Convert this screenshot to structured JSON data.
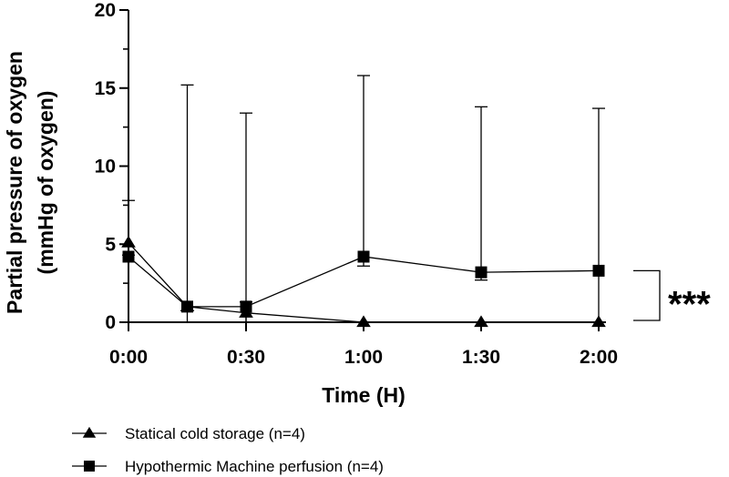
{
  "chart_data": {
    "type": "line",
    "title": "",
    "xlabel": "Time (H)",
    "ylabel": "Partial pressure  of oxygen",
    "ylabel_units": "(mmHg of oxygen)",
    "xlim": [
      0,
      120
    ],
    "ylim": [
      0,
      20
    ],
    "x_ticks": [
      {
        "value": 0,
        "label": "0:00"
      },
      {
        "value": 30,
        "label": "0:30"
      },
      {
        "value": 60,
        "label": "1:00"
      },
      {
        "value": 90,
        "label": "1:30"
      },
      {
        "value": 120,
        "label": "2:00"
      }
    ],
    "y_ticks": [
      {
        "value": 0,
        "label": "0"
      },
      {
        "value": 5,
        "label": "5"
      },
      {
        "value": 10,
        "label": "10"
      },
      {
        "value": 15,
        "label": "15"
      },
      {
        "value": 20,
        "label": "20"
      }
    ],
    "grid": false,
    "series": [
      {
        "name": "Statical cold storage (n=4)",
        "marker": "triangle",
        "color": "#000000",
        "x": [
          0,
          15,
          30,
          60,
          90,
          120
        ],
        "y": [
          5.1,
          1.0,
          0.6,
          0.0,
          0.0,
          0.0
        ],
        "err_low": [
          4.3,
          0.0,
          0.0,
          0.0,
          0.0,
          0.0
        ],
        "err_high": [
          7.8,
          0.0,
          1.3,
          0.0,
          0.0,
          0.0
        ]
      },
      {
        "name": "Hypothermic Machine perfusion (n=4)",
        "marker": "square",
        "color": "#000000",
        "x": [
          0,
          15,
          30,
          60,
          90,
          120
        ],
        "y": [
          4.2,
          1.0,
          1.0,
          4.2,
          3.2,
          3.3
        ],
        "err_low": [
          0.0,
          0.0,
          0.0,
          3.6,
          2.7,
          0.0
        ],
        "err_high": [
          0.0,
          15.2,
          13.4,
          15.8,
          13.8,
          13.7
        ]
      }
    ],
    "significance": {
      "label": "***",
      "between": [
        "Statical cold storage (n=4)",
        "Hypothermic Machine perfusion (n=4)"
      ]
    },
    "legend_position": "bottom-left"
  }
}
